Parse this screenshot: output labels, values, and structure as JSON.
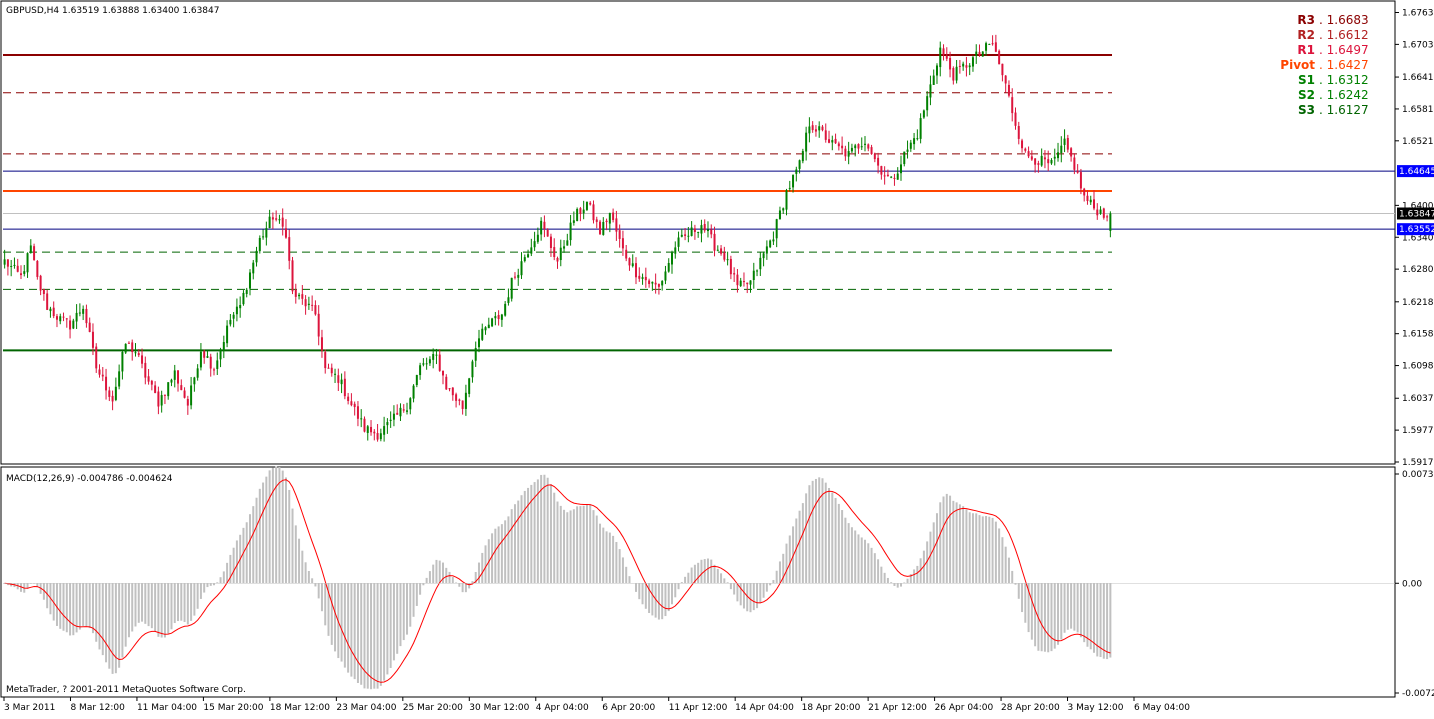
{
  "price_header": "GBPUSD,H4  1.63519 1.63888 1.63400 1.63847",
  "macd_header": "MACD(12,26,9) -0.004786 -0.004624",
  "copyright": "MetaTrader, ? 2001-2011 MetaQuotes Software Corp.",
  "colors": {
    "background": "#ffffff",
    "frame": "#000000",
    "bull_candle": "#008000",
    "bear_candle": "#dc143c",
    "resistance": "#8b0000",
    "pivot": "#ff4500",
    "support": "#006400",
    "range_line": "#000080",
    "current_line": "#c0c0c0",
    "histogram": "#c0c0c0",
    "signal": "#ff0000",
    "label_blue_bg": "#0000ff",
    "label_black_bg": "#000000"
  },
  "pivot_panel": [
    {
      "name": "R3",
      "value": "1.6683",
      "color": "#8b0000"
    },
    {
      "name": "R2",
      "value": "1.6612",
      "color": "#b22222"
    },
    {
      "name": "R1",
      "value": "1.6497",
      "color": "#dc143c"
    },
    {
      "name": "Pivot",
      "value": "1.6427",
      "color": "#ff4500"
    },
    {
      "name": "S1",
      "value": "1.6312",
      "color": "#008000"
    },
    {
      "name": "S2",
      "value": "1.6242",
      "color": "#008000"
    },
    {
      "name": "S3",
      "value": "1.6127",
      "color": "#006400"
    }
  ],
  "price_axis_labels": [
    "1.67630",
    "1.67030",
    "1.66415",
    "1.65815",
    "1.65215",
    "1.64000",
    "1.63400",
    "1.62800",
    "1.62185",
    "1.61585",
    "1.60985",
    "1.60370",
    "1.59770",
    "1.59170"
  ],
  "price_markers": [
    {
      "value": "1.64645",
      "style": "blue"
    },
    {
      "value": "1.63847",
      "style": "black"
    },
    {
      "value": "1.63552",
      "style": "blue"
    }
  ],
  "macd_axis_labels": [
    "0.007306",
    "0.00",
    "-0.007236"
  ],
  "time_labels": [
    "3 Mar 2011",
    "8 Mar 12:00",
    "11 Mar 04:00",
    "15 Mar 20:00",
    "18 Mar 12:00",
    "23 Mar 04:00",
    "25 Mar 20:00",
    "30 Mar 12:00",
    "4 Apr 04:00",
    "6 Apr 20:00",
    "11 Apr 12:00",
    "14 Apr 04:00",
    "18 Apr 20:00",
    "21 Apr 12:00",
    "26 Apr 04:00",
    "28 Apr 20:00",
    "3 May 12:00",
    "6 May 04:00"
  ],
  "chart_data": [
    {
      "type": "candlestick",
      "symbol": "GBPUSD",
      "timeframe": "H4",
      "title": "GBPUSD,H4",
      "last_bar": {
        "open": 1.63519,
        "high": 1.63888,
        "low": 1.634,
        "close": 1.63847
      },
      "ylim": [
        1.5917,
        1.6779
      ],
      "levels": [
        {
          "name": "R3",
          "value": 1.6683,
          "style": "solid"
        },
        {
          "name": "R2",
          "value": 1.6612,
          "style": "dashed"
        },
        {
          "name": "R1",
          "value": 1.6497,
          "style": "dashed"
        },
        {
          "name": "Pivot",
          "value": 1.6427,
          "style": "solid"
        },
        {
          "name": "S1",
          "value": 1.6312,
          "style": "dashed"
        },
        {
          "name": "S2",
          "value": 1.6242,
          "style": "dashed"
        },
        {
          "name": "S3",
          "value": 1.6127,
          "style": "solid"
        }
      ],
      "range_lines": [
        1.64645,
        1.63552
      ],
      "current_price": 1.63847,
      "anchors": [
        [
          0,
          1.6295
        ],
        [
          5,
          1.6265
        ],
        [
          8,
          1.632
        ],
        [
          10,
          1.626
        ],
        [
          13,
          1.621
        ],
        [
          17,
          1.6185
        ],
        [
          20,
          1.6175
        ],
        [
          24,
          1.621
        ],
        [
          28,
          1.6095
        ],
        [
          33,
          1.6035
        ],
        [
          37,
          1.614
        ],
        [
          40,
          1.6125
        ],
        [
          43,
          1.608
        ],
        [
          47,
          1.603
        ],
        [
          52,
          1.6085
        ],
        [
          56,
          1.6025
        ],
        [
          60,
          1.613
        ],
        [
          64,
          1.6095
        ],
        [
          69,
          1.6185
        ],
        [
          72,
          1.621
        ],
        [
          78,
          1.6335
        ],
        [
          82,
          1.638
        ],
        [
          86,
          1.635
        ],
        [
          88,
          1.6235
        ],
        [
          92,
          1.6215
        ],
        [
          95,
          1.6195
        ],
        [
          98,
          1.609
        ],
        [
          102,
          1.6075
        ],
        [
          106,
          1.6025
        ],
        [
          110,
          1.598
        ],
        [
          114,
          1.597
        ],
        [
          118,
          1.599
        ],
        [
          123,
          1.6025
        ],
        [
          127,
          1.6095
        ],
        [
          132,
          1.6115
        ],
        [
          135,
          1.606
        ],
        [
          140,
          1.602
        ],
        [
          144,
          1.614
        ],
        [
          148,
          1.6175
        ],
        [
          152,
          1.6195
        ],
        [
          155,
          1.6255
        ],
        [
          159,
          1.6305
        ],
        [
          164,
          1.6365
        ],
        [
          169,
          1.6295
        ],
        [
          174,
          1.6375
        ],
        [
          178,
          1.6405
        ],
        [
          182,
          1.635
        ],
        [
          185,
          1.6385
        ],
        [
          189,
          1.6315
        ],
        [
          193,
          1.6275
        ],
        [
          197,
          1.6255
        ],
        [
          200,
          1.6245
        ],
        [
          205,
          1.6325
        ],
        [
          209,
          1.6345
        ],
        [
          213,
          1.6365
        ],
        [
          217,
          1.6325
        ],
        [
          220,
          1.6305
        ],
        [
          224,
          1.6245
        ],
        [
          228,
          1.6255
        ],
        [
          231,
          1.6295
        ],
        [
          235,
          1.6345
        ],
        [
          239,
          1.6425
        ],
        [
          243,
          1.6475
        ],
        [
          246,
          1.6555
        ],
        [
          250,
          1.6535
        ],
        [
          253,
          1.6515
        ],
        [
          258,
          1.6495
        ],
        [
          263,
          1.6525
        ],
        [
          267,
          1.6475
        ],
        [
          271,
          1.6445
        ],
        [
          275,
          1.6495
        ],
        [
          279,
          1.6535
        ],
        [
          283,
          1.6625
        ],
        [
          286,
          1.6695
        ],
        [
          290,
          1.6645
        ],
        [
          294,
          1.6665
        ],
        [
          298,
          1.6685
        ],
        [
          302,
          1.6705
        ],
        [
          306,
          1.6625
        ],
        [
          309,
          1.6555
        ],
        [
          312,
          1.6495
        ],
        [
          316,
          1.6485
        ],
        [
          320,
          1.6475
        ],
        [
          324,
          1.6515
        ],
        [
          327,
          1.6475
        ],
        [
          330,
          1.6415
        ],
        [
          333,
          1.6395
        ],
        [
          336,
          1.6385
        ],
        [
          338,
          1.6385
        ]
      ]
    },
    {
      "type": "histogram+line",
      "title": "MACD(12,26,9)",
      "params": [
        12,
        26,
        9
      ],
      "last_values": {
        "macd": -0.004786,
        "signal": -0.004624
      },
      "ylim": [
        -0.0072,
        0.0073
      ],
      "zero_line": 0.0,
      "histogram_series": "MACD(12,26,9) main",
      "signal_series": "MACD(12,26,9) signal"
    }
  ]
}
